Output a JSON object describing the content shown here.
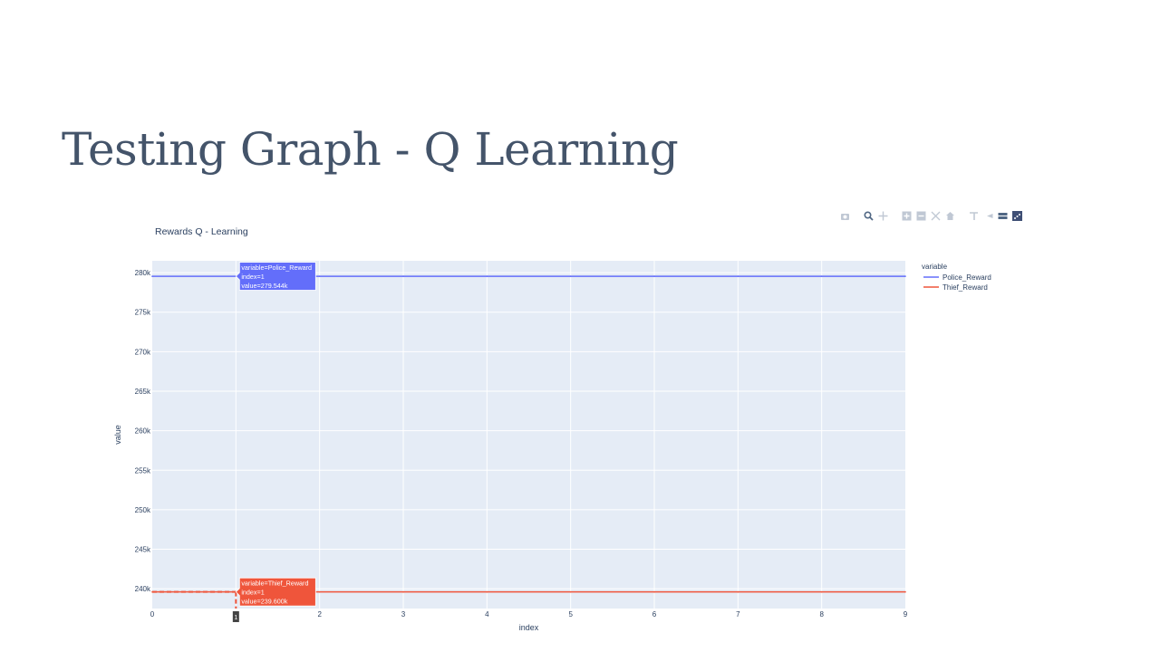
{
  "page": {
    "title": "Testing Graph - Q Learning"
  },
  "modebar": {
    "buttons": [
      {
        "name": "camera-icon",
        "title": "Download plot as a png"
      },
      {
        "name": "zoom-icon",
        "title": "Zoom"
      },
      {
        "name": "pan-icon",
        "title": "Pan"
      },
      {
        "name": "zoom-in-icon",
        "title": "Zoom in"
      },
      {
        "name": "zoom-out-icon",
        "title": "Zoom out"
      },
      {
        "name": "autoscale-icon",
        "title": "Autoscale"
      },
      {
        "name": "home-icon",
        "title": "Reset axes"
      },
      {
        "name": "spike-lines-icon",
        "title": "Toggle Spike Lines"
      },
      {
        "name": "hover-closest-icon",
        "title": "Show closest data on hover"
      },
      {
        "name": "hover-compare-icon",
        "title": "Compare data on hover"
      },
      {
        "name": "plotly-logo-icon",
        "title": "Produced with Plotly"
      }
    ]
  },
  "chart_data": {
    "type": "line",
    "title": "Rewards Q - Learning",
    "xlabel": "index",
    "ylabel": "value",
    "x": [
      0,
      1,
      2,
      3,
      4,
      5,
      6,
      7,
      8,
      9
    ],
    "xlim": [
      0,
      9
    ],
    "ylim": [
      237.5,
      281.5
    ],
    "yticks": [
      240,
      245,
      250,
      255,
      260,
      265,
      270,
      275,
      280
    ],
    "ytick_labels": [
      "240k",
      "245k",
      "250k",
      "255k",
      "260k",
      "265k",
      "270k",
      "275k",
      "280k"
    ],
    "xtick_labels": [
      "0",
      "1",
      "2",
      "3",
      "4",
      "5",
      "6",
      "7",
      "8",
      "9"
    ],
    "grid": true,
    "background": "#e5ecf6",
    "legend": {
      "title": "variable",
      "placement": "right"
    },
    "series": [
      {
        "name": "Police_Reward",
        "color": "#636efa",
        "values": [
          279.544,
          279.544,
          279.544,
          279.544,
          279.544,
          279.544,
          279.544,
          279.544,
          279.544,
          279.544
        ]
      },
      {
        "name": "Thief_Reward",
        "color": "#ef553b",
        "values": [
          239.6,
          239.6,
          239.6,
          239.6,
          239.6,
          239.6,
          239.6,
          239.6,
          239.6,
          239.6
        ]
      }
    ],
    "hover": {
      "index": 1,
      "x_spike_label": "1",
      "labels": [
        {
          "series": "Police_Reward",
          "lines": [
            "variable=Police_Reward",
            "index=1",
            "value=279.544k"
          ]
        },
        {
          "series": "Thief_Reward",
          "lines": [
            "variable=Thief_Reward",
            "index=1",
            "value=239.600k"
          ]
        }
      ]
    }
  }
}
